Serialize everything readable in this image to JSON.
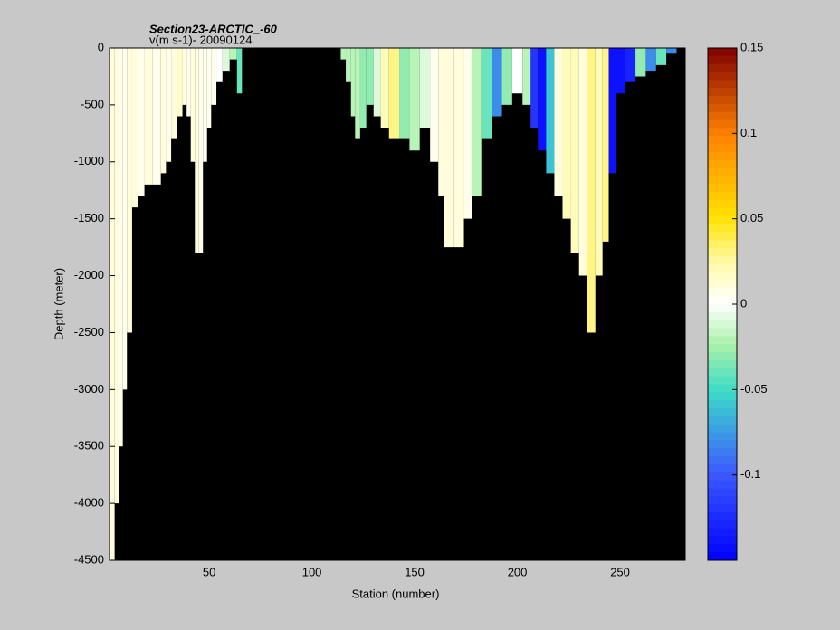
{
  "chart_data": {
    "type": "heatmap",
    "title": "Section23-ARCTIC_-60",
    "subtitle": "v(m s-1)- 20090124",
    "xlabel": "Station (number)",
    "ylabel": "Depth (meter)",
    "x": [
      3,
      5,
      7,
      9,
      11,
      14,
      17,
      20,
      25,
      28,
      30,
      33,
      36,
      38,
      40,
      42,
      44,
      46,
      48,
      50,
      52,
      55,
      58,
      62,
      65,
      67,
      113,
      115,
      118,
      120,
      122,
      125,
      128,
      132,
      135,
      140,
      145,
      150,
      155,
      160,
      163,
      166,
      172,
      176,
      180,
      185,
      190,
      195,
      200,
      205,
      208,
      212,
      216,
      220,
      224,
      228,
      232,
      236,
      240,
      243,
      246,
      250,
      255,
      260,
      265,
      270,
      275,
      280,
      282
    ],
    "values": [
      0.01,
      0.01,
      0.005,
      0.005,
      0.01,
      0.01,
      0.005,
      0.01,
      0.005,
      0.01,
      0.005,
      0.01,
      0.015,
      0.01,
      0.005,
      0.01,
      0.01,
      0.005,
      0.005,
      0.005,
      0.005,
      0,
      -0.01,
      -0.02,
      -0.04,
      null,
      null,
      -0.02,
      -0.02,
      -0.02,
      -0.02,
      -0.03,
      -0.03,
      -0.01,
      0.02,
      0.03,
      -0.03,
      -0.02,
      -0.01,
      0.005,
      0.01,
      0.01,
      0.01,
      0.005,
      -0.02,
      -0.04,
      -0.08,
      -0.03,
      0,
      -0.02,
      -0.12,
      -0.14,
      -0.06,
      0.01,
      0.02,
      0.02,
      0.01,
      0.03,
      0.02,
      0.03,
      -0.14,
      -0.14,
      -0.13,
      -0.03,
      -0.08,
      -0.04,
      -0.08,
      null,
      null
    ],
    "bottom": [
      -4500,
      -4000,
      -3500,
      -3000,
      -2500,
      -1400,
      -1300,
      -1200,
      -1200,
      -1100,
      -1000,
      -800,
      -600,
      -500,
      -600,
      -1000,
      -1800,
      -1800,
      -1000,
      -700,
      -500,
      -300,
      -200,
      -100,
      -400,
      0,
      0,
      -100,
      -300,
      -600,
      -800,
      -700,
      -500,
      -600,
      -700,
      -800,
      -800,
      -900,
      -700,
      -1000,
      -1300,
      -1750,
      -1750,
      -1500,
      -1300,
      -800,
      -600,
      -500,
      -400,
      -500,
      -700,
      -900,
      -1100,
      -1300,
      -1500,
      -1800,
      -2000,
      -2500,
      -2000,
      -1700,
      -1100,
      -400,
      -300,
      -250,
      -200,
      -150,
      -50,
      0,
      0
    ],
    "xlim": [
      1.5,
      281.7
    ],
    "ylim": [
      -4500,
      0
    ],
    "xticks": [
      50,
      100,
      150,
      200,
      250
    ],
    "yticks": [
      -4500,
      -4000,
      -3500,
      -3000,
      -2500,
      -2000,
      -1500,
      -1000,
      -500,
      0
    ],
    "clim": [
      -0.15,
      0.15
    ],
    "cticks": [
      -0.1,
      -0.05,
      0,
      0.05,
      0.1,
      0.15
    ]
  }
}
